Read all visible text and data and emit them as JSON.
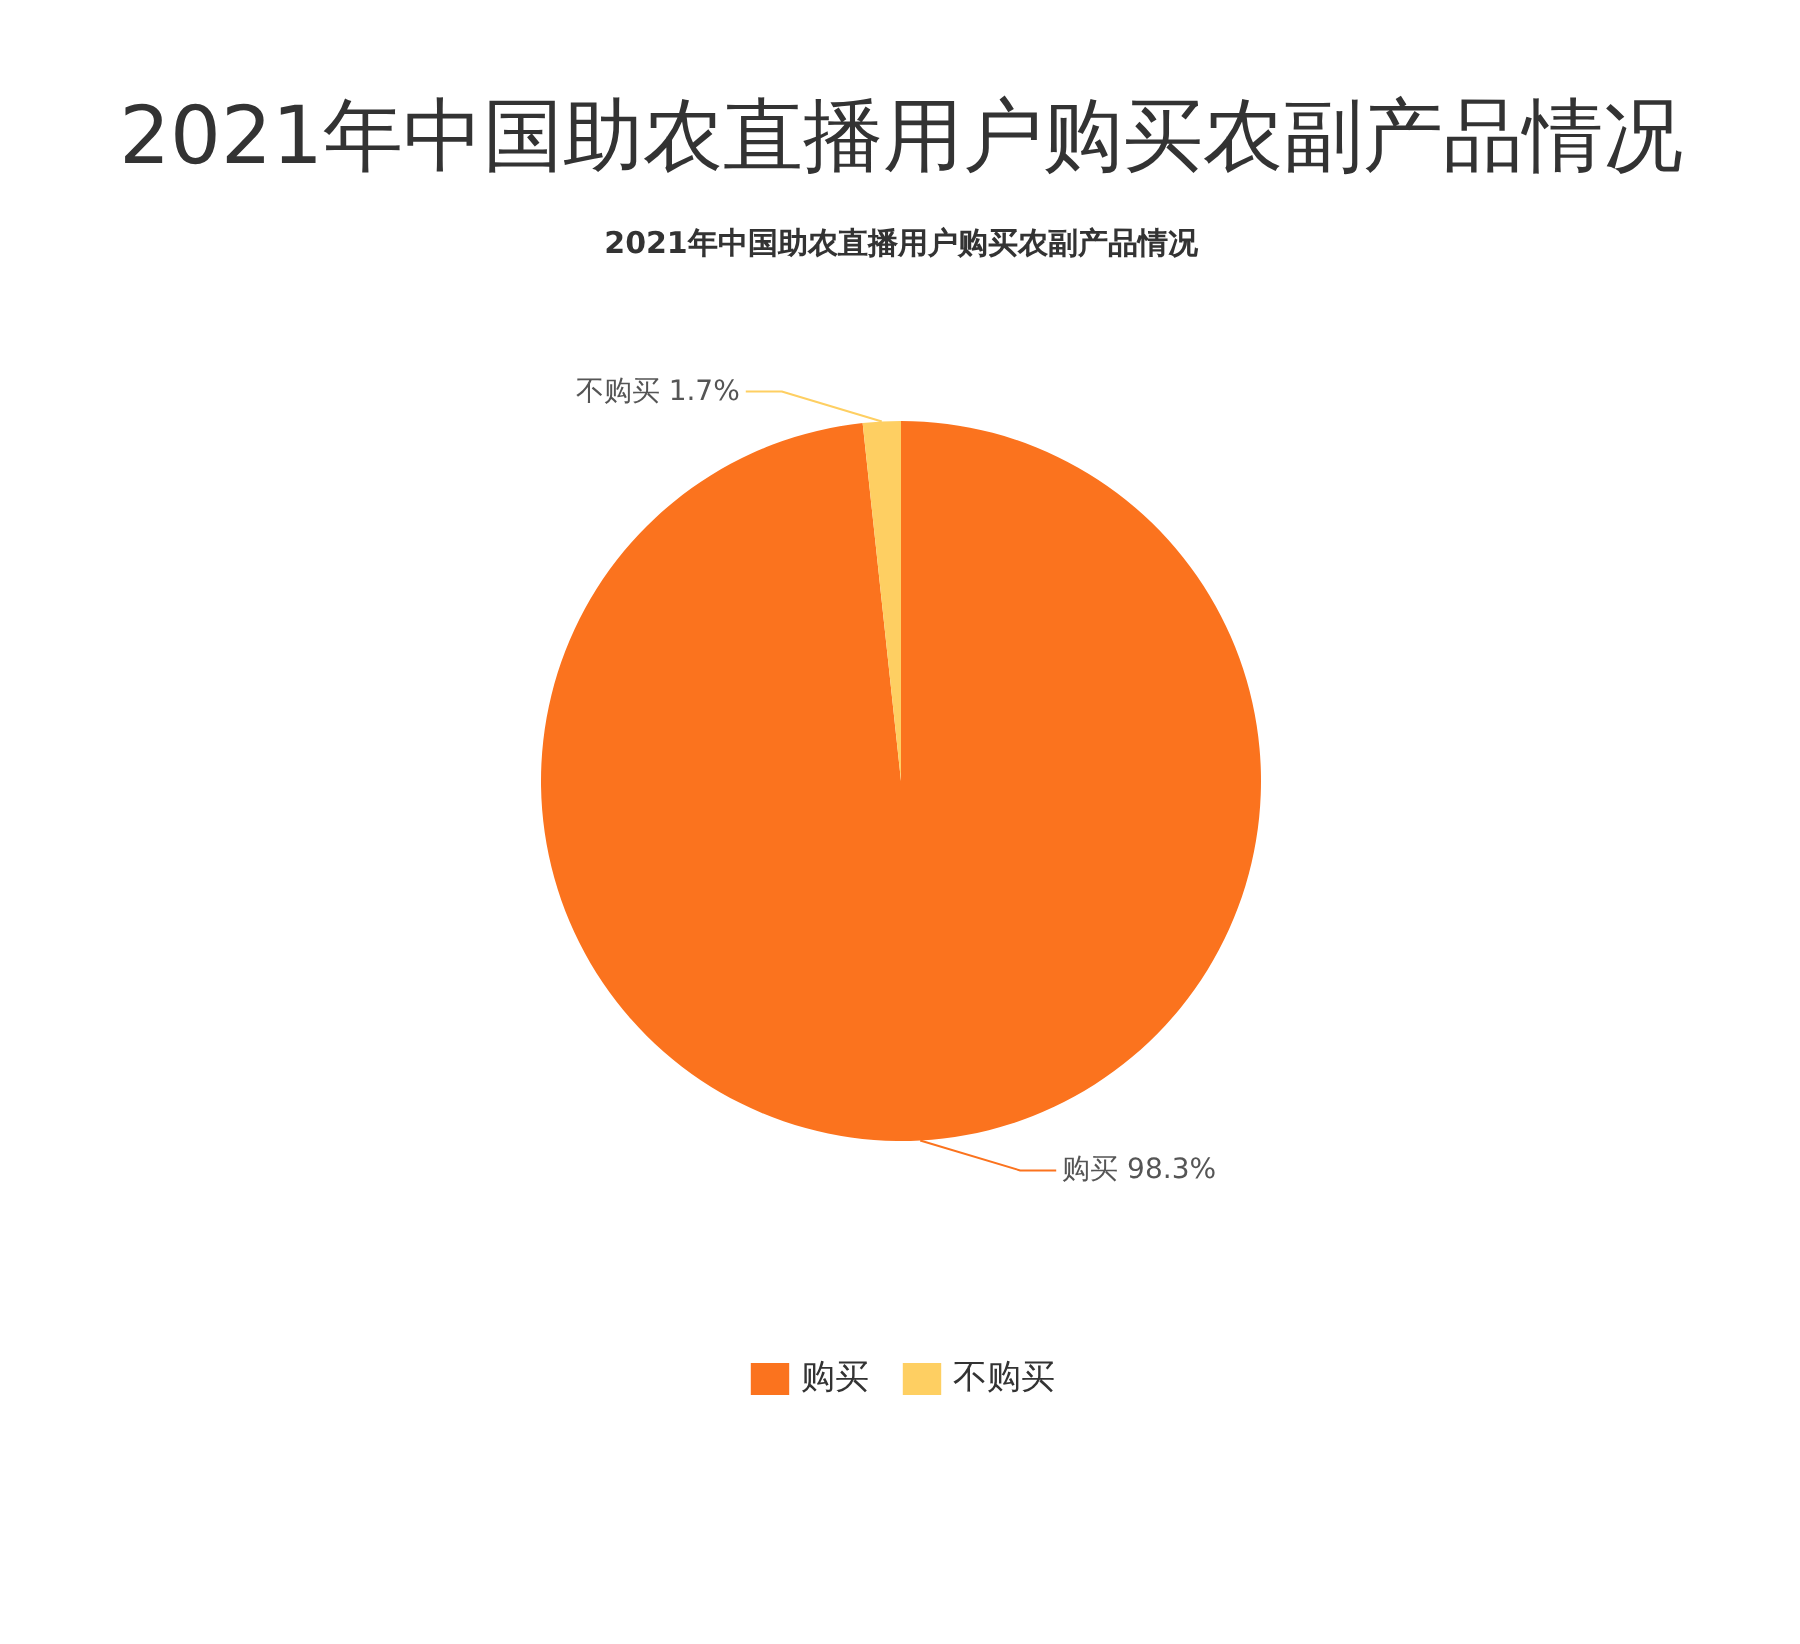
{
  "chart_data": {
    "type": "pie",
    "title": "2021年中国助农直播用户购买农副产品情况",
    "subtitle": "2021年中国助农直播用户购买农副产品情况",
    "categories": [
      "购买",
      "不购买"
    ],
    "values": [
      98.3,
      1.7
    ],
    "colors": [
      "#fb731e",
      "#fecf62"
    ],
    "value_labels": [
      "购买 98.3%",
      "不购买 1.7%"
    ],
    "legend": "bottom"
  }
}
